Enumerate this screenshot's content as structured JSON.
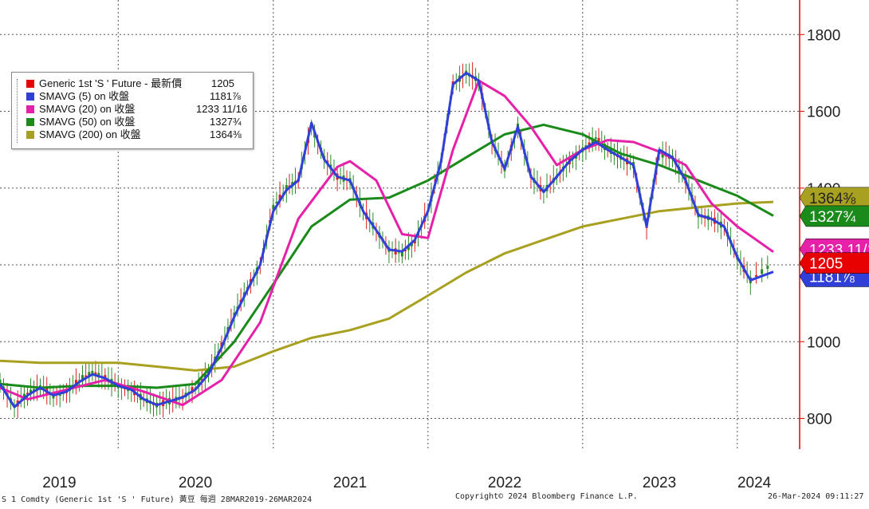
{
  "chart_data": {
    "type": "line",
    "title": "Generic 1st 'S ' Future",
    "x_range": [
      "2019-03-28",
      "2024-03-26"
    ],
    "y_range": [
      720,
      1890
    ],
    "y_ticks": [
      800,
      1000,
      1200,
      1400,
      1600,
      1800
    ],
    "x_ticks": [
      "2019",
      "2020",
      "2021",
      "2022",
      "2023",
      "2024"
    ],
    "grid": true,
    "legend_position": "top-left",
    "series": [
      {
        "name": "Generic 1st 'S ' Future - 最新價",
        "last_label": "1205",
        "last_value": 1205,
        "color": "#e60000",
        "style": "candles",
        "x": [
          "2019-03-28",
          "2019-05-01",
          "2019-06-01",
          "2019-07-01",
          "2019-08-01",
          "2019-09-01",
          "2019-10-01",
          "2019-11-01",
          "2019-12-01",
          "2020-01-01",
          "2020-02-01",
          "2020-03-01",
          "2020-04-01",
          "2020-05-01",
          "2020-06-01",
          "2020-07-01",
          "2020-08-01",
          "2020-09-01",
          "2020-10-01",
          "2020-11-01",
          "2020-12-01",
          "2021-01-01",
          "2021-02-01",
          "2021-03-01",
          "2021-04-01",
          "2021-05-01",
          "2021-06-01",
          "2021-07-01",
          "2021-08-01",
          "2021-09-01",
          "2021-10-01",
          "2021-11-01",
          "2021-12-01",
          "2022-01-01",
          "2022-02-01",
          "2022-03-01",
          "2022-04-01",
          "2022-05-01",
          "2022-06-01",
          "2022-07-01",
          "2022-08-01",
          "2022-09-01",
          "2022-10-01",
          "2022-11-01",
          "2022-12-01",
          "2023-01-01",
          "2023-02-01",
          "2023-03-01",
          "2023-04-01",
          "2023-05-01",
          "2023-06-01",
          "2023-07-01",
          "2023-08-01",
          "2023-09-01",
          "2023-10-01",
          "2023-11-01",
          "2023-12-01",
          "2024-01-01",
          "2024-02-01",
          "2024-03-26"
        ],
        "y": [
          895,
          830,
          865,
          880,
          860,
          870,
          900,
          920,
          905,
          885,
          875,
          850,
          835,
          845,
          855,
          880,
          920,
          990,
          1070,
          1140,
          1200,
          1350,
          1400,
          1420,
          1560,
          1480,
          1430,
          1420,
          1340,
          1290,
          1240,
          1230,
          1260,
          1340,
          1470,
          1670,
          1700,
          1680,
          1520,
          1450,
          1560,
          1430,
          1390,
          1430,
          1470,
          1500,
          1530,
          1500,
          1480,
          1460,
          1300,
          1490,
          1480,
          1420,
          1330,
          1320,
          1300,
          1220,
          1160,
          1205
        ]
      },
      {
        "name": "SMAVG (5)  on 收盤",
        "last_label": "1181⅞",
        "last_value": 1181.875,
        "color": "#2f3fd8",
        "x": [
          "2019-03-28",
          "2019-05-01",
          "2019-06-01",
          "2019-07-01",
          "2019-08-01",
          "2019-09-01",
          "2019-10-01",
          "2019-11-01",
          "2019-12-01",
          "2020-01-01",
          "2020-02-01",
          "2020-03-01",
          "2020-04-01",
          "2020-05-01",
          "2020-06-01",
          "2020-07-01",
          "2020-08-01",
          "2020-09-01",
          "2020-10-01",
          "2020-11-01",
          "2020-12-01",
          "2021-01-01",
          "2021-02-01",
          "2021-03-01",
          "2021-04-01",
          "2021-05-01",
          "2021-06-01",
          "2021-07-01",
          "2021-08-01",
          "2021-09-01",
          "2021-10-01",
          "2021-11-01",
          "2021-12-01",
          "2022-01-01",
          "2022-02-01",
          "2022-03-01",
          "2022-04-01",
          "2022-05-01",
          "2022-06-01",
          "2022-07-01",
          "2022-08-01",
          "2022-09-01",
          "2022-10-01",
          "2022-11-01",
          "2022-12-01",
          "2023-01-01",
          "2023-02-01",
          "2023-03-01",
          "2023-04-01",
          "2023-05-01",
          "2023-06-01",
          "2023-07-01",
          "2023-08-01",
          "2023-09-01",
          "2023-10-01",
          "2023-11-01",
          "2023-12-01",
          "2024-01-01",
          "2024-02-01",
          "2024-03-26"
        ],
        "y": [
          890,
          830,
          860,
          880,
          860,
          870,
          895,
          915,
          905,
          885,
          875,
          850,
          835,
          845,
          855,
          875,
          915,
          985,
          1065,
          1135,
          1200,
          1340,
          1395,
          1420,
          1570,
          1475,
          1430,
          1420,
          1340,
          1290,
          1240,
          1235,
          1265,
          1340,
          1470,
          1670,
          1700,
          1680,
          1520,
          1450,
          1560,
          1430,
          1390,
          1430,
          1470,
          1500,
          1520,
          1500,
          1480,
          1460,
          1300,
          1500,
          1480,
          1420,
          1330,
          1320,
          1300,
          1220,
          1160,
          1182
        ]
      },
      {
        "name": "SMAVG (20)  on 收盤",
        "last_label": "1233 11/16",
        "last_value": 1233.6875,
        "color": "#e620a8",
        "x": [
          "2019-03-28",
          "2019-06-01",
          "2019-09-01",
          "2019-12-01",
          "2020-03-01",
          "2020-06-01",
          "2020-09-01",
          "2020-12-01",
          "2021-03-01",
          "2021-06-01",
          "2021-07-01",
          "2021-09-01",
          "2021-11-01",
          "2022-01-01",
          "2022-03-01",
          "2022-05-01",
          "2022-07-01",
          "2022-09-01",
          "2022-11-01",
          "2023-01-01",
          "2023-03-01",
          "2023-05-01",
          "2023-07-01",
          "2023-09-01",
          "2023-11-01",
          "2024-01-01",
          "2024-03-26"
        ],
        "y": [
          880,
          850,
          875,
          900,
          870,
          835,
          900,
          1050,
          1320,
          1455,
          1470,
          1420,
          1280,
          1270,
          1500,
          1680,
          1640,
          1560,
          1460,
          1500,
          1525,
          1520,
          1495,
          1460,
          1360,
          1300,
          1234
        ]
      },
      {
        "name": "SMAVG (50)  on 收盤",
        "last_label": "1327¾",
        "last_value": 1327.75,
        "color": "#1a8a1a",
        "x": [
          "2019-03-28",
          "2019-07-01",
          "2019-10-01",
          "2020-01-01",
          "2020-04-01",
          "2020-07-01",
          "2020-10-01",
          "2021-01-01",
          "2021-04-01",
          "2021-07-01",
          "2021-10-01",
          "2022-01-01",
          "2022-04-01",
          "2022-07-01",
          "2022-10-01",
          "2023-01-01",
          "2023-04-01",
          "2023-07-01",
          "2023-10-01",
          "2024-01-01",
          "2024-03-26"
        ],
        "y": [
          890,
          880,
          885,
          885,
          880,
          890,
          1000,
          1150,
          1300,
          1370,
          1375,
          1420,
          1480,
          1540,
          1565,
          1540,
          1490,
          1460,
          1420,
          1380,
          1328
        ]
      },
      {
        "name": "SMAVG (200)  on 收盤",
        "last_label": "1364⅜",
        "last_value": 1364.375,
        "color": "#a8a020",
        "x": [
          "2019-03-28",
          "2019-07-01",
          "2019-10-01",
          "2020-01-01",
          "2020-04-01",
          "2020-07-01",
          "2020-10-01",
          "2021-01-01",
          "2021-04-01",
          "2021-07-01",
          "2021-10-01",
          "2022-01-01",
          "2022-04-01",
          "2022-07-01",
          "2022-10-01",
          "2023-01-01",
          "2023-04-01",
          "2023-07-01",
          "2023-10-01",
          "2024-01-01",
          "2024-03-26"
        ],
        "y": [
          950,
          945,
          945,
          945,
          935,
          925,
          935,
          975,
          1010,
          1030,
          1060,
          1120,
          1180,
          1230,
          1265,
          1300,
          1320,
          1340,
          1350,
          1360,
          1364
        ]
      }
    ]
  },
  "footer": {
    "left": "S 1 Comdty (Generic 1st 'S ' Future) 黃豆  每週 28MAR2019-26MAR2024",
    "center": "Copyright© 2024 Bloomberg Finance L.P.",
    "right": "26-Mar-2024 09:11:27"
  }
}
